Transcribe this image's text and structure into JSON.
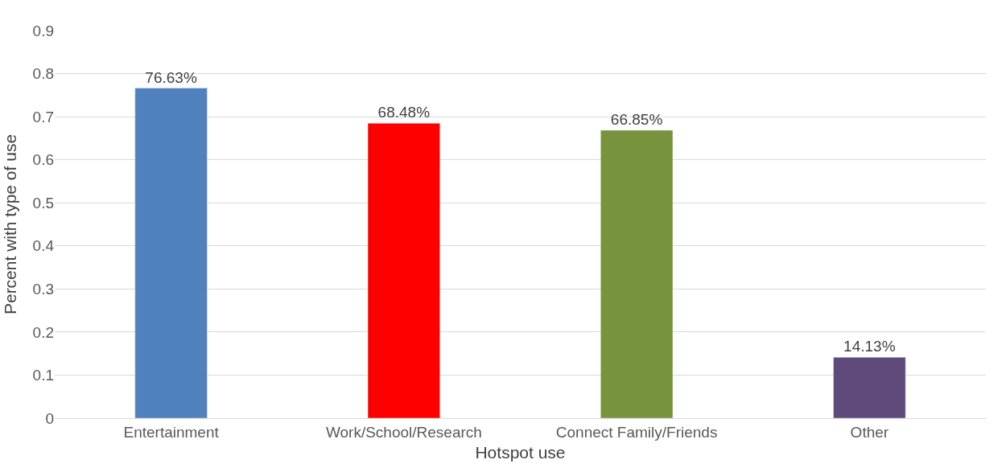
{
  "chart_data": {
    "type": "bar",
    "xlabel": "Hotspot use",
    "ylabel": "Percent with type of use",
    "categories": [
      "Entertainment",
      "Work/School/Research",
      "Connect Family/Friends",
      "Other"
    ],
    "values": [
      0.7663,
      0.6848,
      0.6685,
      0.1413
    ],
    "colors": [
      "#4f81bd",
      "#ff0000",
      "#77933c",
      "#604a7b"
    ],
    "value_labels": [
      "76.63%",
      "68.48%",
      "66.85%",
      "14.13%"
    ],
    "ylim": [
      0,
      0.9
    ],
    "yticks": [
      0,
      0.1,
      0.2,
      0.3,
      0.4,
      0.5,
      0.6,
      0.7,
      0.8,
      0.9
    ],
    "grid": "y"
  }
}
